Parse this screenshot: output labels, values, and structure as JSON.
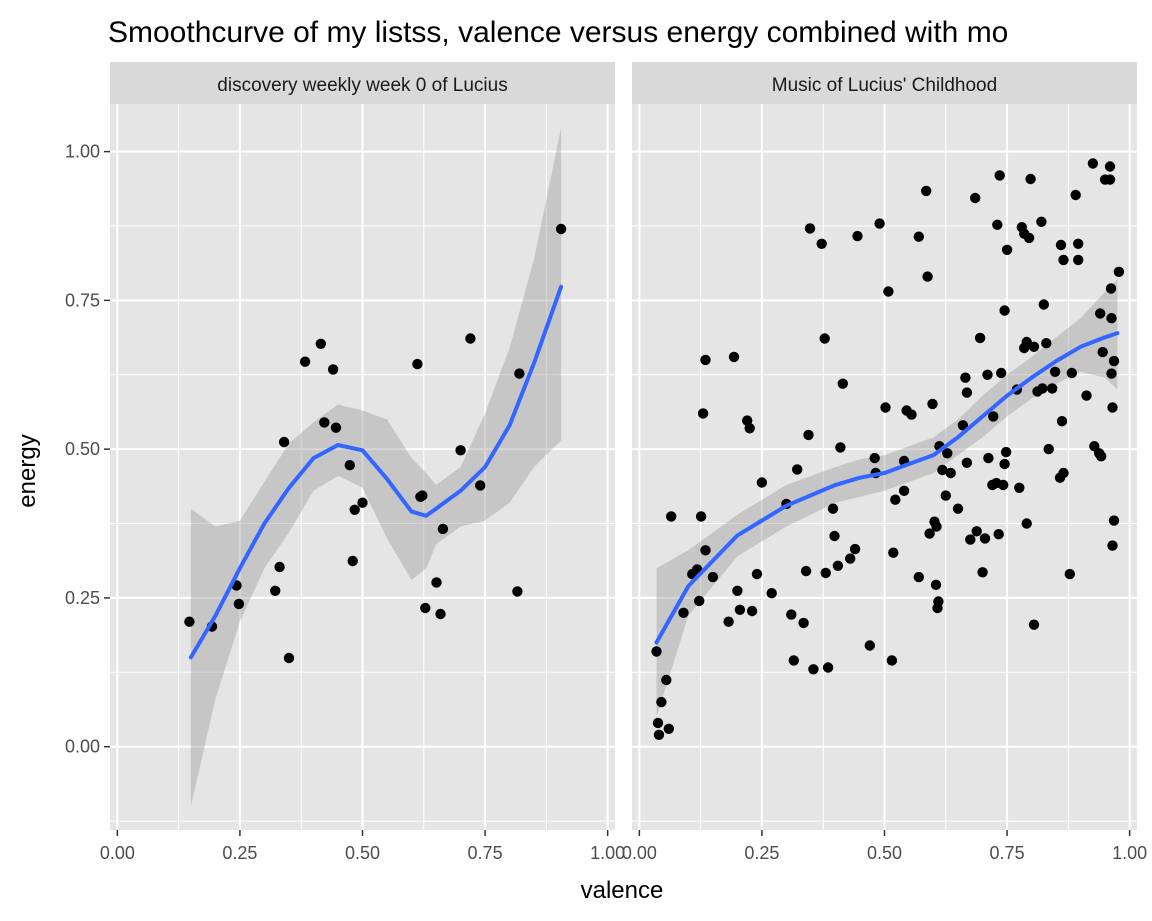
{
  "chart_data": {
    "type": "scatter",
    "title": "Smoothcurve of my listss, valence versus energy combined with mo",
    "xlabel": "valence",
    "ylabel": "energy",
    "xlim": [
      -0.015,
      1.015
    ],
    "ylim": [
      -0.14,
      1.08
    ],
    "x_ticks": [
      "0.00",
      "0.25",
      "0.50",
      "0.75",
      "1.00"
    ],
    "y_ticks": [
      "0.00",
      "0.25",
      "0.50",
      "0.75",
      "1.00"
    ],
    "grid": true,
    "legend": "none",
    "colors": {
      "panel_bg": "#e5e5e5",
      "strip_bg": "#d9d9d9",
      "grid": "#ffffff",
      "point": "#000000",
      "line": "#3366ff",
      "ribbon": "#999999"
    },
    "panels": [
      {
        "label": "discovery weekly week 0 of Lucius",
        "points": [
          [
            0.147,
            0.21
          ],
          [
            0.193,
            0.202
          ],
          [
            0.243,
            0.271
          ],
          [
            0.248,
            0.24
          ],
          [
            0.322,
            0.262
          ],
          [
            0.331,
            0.302
          ],
          [
            0.34,
            0.512
          ],
          [
            0.35,
            0.149
          ],
          [
            0.383,
            0.647
          ],
          [
            0.415,
            0.677
          ],
          [
            0.422,
            0.545
          ],
          [
            0.44,
            0.634
          ],
          [
            0.446,
            0.536
          ],
          [
            0.474,
            0.473
          ],
          [
            0.48,
            0.312
          ],
          [
            0.484,
            0.398
          ],
          [
            0.5,
            0.41
          ],
          [
            0.612,
            0.643
          ],
          [
            0.618,
            0.42
          ],
          [
            0.622,
            0.422
          ],
          [
            0.628,
            0.233
          ],
          [
            0.651,
            0.276
          ],
          [
            0.659,
            0.223
          ],
          [
            0.664,
            0.366
          ],
          [
            0.7,
            0.498
          ],
          [
            0.72,
            0.686
          ],
          [
            0.74,
            0.439
          ],
          [
            0.816,
            0.261
          ],
          [
            0.82,
            0.627
          ],
          [
            0.905,
            0.87
          ]
        ],
        "smooth": {
          "x": [
            0.15,
            0.2,
            0.25,
            0.3,
            0.35,
            0.4,
            0.45,
            0.5,
            0.55,
            0.6,
            0.63,
            0.65,
            0.7,
            0.75,
            0.8,
            0.85,
            0.905
          ],
          "y": [
            0.15,
            0.22,
            0.3,
            0.375,
            0.435,
            0.485,
            0.507,
            0.498,
            0.45,
            0.395,
            0.388,
            0.4,
            0.43,
            0.47,
            0.54,
            0.645,
            0.773
          ],
          "lower": [
            -0.1,
            0.08,
            0.21,
            0.3,
            0.36,
            0.43,
            0.455,
            0.435,
            0.35,
            0.28,
            0.3,
            0.34,
            0.37,
            0.38,
            0.41,
            0.47,
            0.515
          ],
          "upper": [
            0.4,
            0.37,
            0.38,
            0.445,
            0.51,
            0.545,
            0.575,
            0.565,
            0.55,
            0.485,
            0.46,
            0.44,
            0.47,
            0.56,
            0.67,
            0.82,
            1.04
          ]
        }
      },
      {
        "label": "Music of Lucius' Childhood",
        "points": [
          [
            0.035,
            0.16
          ],
          [
            0.038,
            0.04
          ],
          [
            0.04,
            0.02
          ],
          [
            0.045,
            0.075
          ],
          [
            0.055,
            0.112
          ],
          [
            0.06,
            0.03
          ],
          [
            0.065,
            0.387
          ],
          [
            0.09,
            0.225
          ],
          [
            0.108,
            0.29
          ],
          [
            0.118,
            0.298
          ],
          [
            0.122,
            0.245
          ],
          [
            0.126,
            0.387
          ],
          [
            0.13,
            0.56
          ],
          [
            0.135,
            0.65
          ],
          [
            0.15,
            0.285
          ],
          [
            0.135,
            0.33
          ],
          [
            0.182,
            0.21
          ],
          [
            0.193,
            0.655
          ],
          [
            0.2,
            0.262
          ],
          [
            0.205,
            0.23
          ],
          [
            0.22,
            0.548
          ],
          [
            0.225,
            0.535
          ],
          [
            0.23,
            0.228
          ],
          [
            0.24,
            0.29
          ],
          [
            0.25,
            0.444
          ],
          [
            0.27,
            0.258
          ],
          [
            0.3,
            0.408
          ],
          [
            0.31,
            0.222
          ],
          [
            0.315,
            0.145
          ],
          [
            0.322,
            0.466
          ],
          [
            0.335,
            0.208
          ],
          [
            0.34,
            0.295
          ],
          [
            0.345,
            0.524
          ],
          [
            0.355,
            0.13
          ],
          [
            0.348,
            0.871
          ],
          [
            0.372,
            0.845
          ],
          [
            0.378,
            0.686
          ],
          [
            0.38,
            0.292
          ],
          [
            0.385,
            0.133
          ],
          [
            0.395,
            0.4
          ],
          [
            0.398,
            0.354
          ],
          [
            0.405,
            0.304
          ],
          [
            0.41,
            0.503
          ],
          [
            0.415,
            0.61
          ],
          [
            0.43,
            0.316
          ],
          [
            0.44,
            0.332
          ],
          [
            0.445,
            0.858
          ],
          [
            0.47,
            0.17
          ],
          [
            0.48,
            0.485
          ],
          [
            0.482,
            0.46
          ],
          [
            0.49,
            0.879
          ],
          [
            0.502,
            0.57
          ],
          [
            0.508,
            0.765
          ],
          [
            0.515,
            0.145
          ],
          [
            0.518,
            0.326
          ],
          [
            0.522,
            0.415
          ],
          [
            0.54,
            0.43
          ],
          [
            0.54,
            0.48
          ],
          [
            0.545,
            0.565
          ],
          [
            0.555,
            0.558
          ],
          [
            0.57,
            0.285
          ],
          [
            0.57,
            0.857
          ],
          [
            0.585,
            0.934
          ],
          [
            0.588,
            0.79
          ],
          [
            0.592,
            0.358
          ],
          [
            0.598,
            0.576
          ],
          [
            0.602,
            0.378
          ],
          [
            0.605,
            0.272
          ],
          [
            0.606,
            0.37
          ],
          [
            0.608,
            0.233
          ],
          [
            0.61,
            0.244
          ],
          [
            0.612,
            0.505
          ],
          [
            0.618,
            0.465
          ],
          [
            0.625,
            0.422
          ],
          [
            0.628,
            0.493
          ],
          [
            0.635,
            0.46
          ],
          [
            0.65,
            0.4
          ],
          [
            0.66,
            0.54
          ],
          [
            0.665,
            0.62
          ],
          [
            0.668,
            0.595
          ],
          [
            0.668,
            0.477
          ],
          [
            0.675,
            0.348
          ],
          [
            0.685,
            0.922
          ],
          [
            0.688,
            0.362
          ],
          [
            0.695,
            0.687
          ],
          [
            0.7,
            0.293
          ],
          [
            0.705,
            0.35
          ],
          [
            0.71,
            0.625
          ],
          [
            0.712,
            0.485
          ],
          [
            0.72,
            0.44
          ],
          [
            0.722,
            0.555
          ],
          [
            0.728,
            0.443
          ],
          [
            0.73,
            0.877
          ],
          [
            0.733,
            0.357
          ],
          [
            0.735,
            0.96
          ],
          [
            0.738,
            0.628
          ],
          [
            0.742,
            0.44
          ],
          [
            0.745,
            0.475
          ],
          [
            0.748,
            0.495
          ],
          [
            0.75,
            0.835
          ],
          [
            0.745,
            0.733
          ],
          [
            0.77,
            0.6
          ],
          [
            0.775,
            0.435
          ],
          [
            0.78,
            0.873
          ],
          [
            0.785,
            0.862
          ],
          [
            0.785,
            0.67
          ],
          [
            0.79,
            0.68
          ],
          [
            0.79,
            0.375
          ],
          [
            0.795,
            0.855
          ],
          [
            0.798,
            0.954
          ],
          [
            0.805,
            0.672
          ],
          [
            0.805,
            0.205
          ],
          [
            0.812,
            0.597
          ],
          [
            0.82,
            0.882
          ],
          [
            0.822,
            0.602
          ],
          [
            0.825,
            0.743
          ],
          [
            0.83,
            0.678
          ],
          [
            0.835,
            0.5
          ],
          [
            0.842,
            0.602
          ],
          [
            0.848,
            0.63
          ],
          [
            0.858,
            0.452
          ],
          [
            0.86,
            0.843
          ],
          [
            0.862,
            0.547
          ],
          [
            0.865,
            0.46
          ],
          [
            0.865,
            0.818
          ],
          [
            0.878,
            0.29
          ],
          [
            0.882,
            0.628
          ],
          [
            0.89,
            0.927
          ],
          [
            0.895,
            0.845
          ],
          [
            0.895,
            0.818
          ],
          [
            0.912,
            0.59
          ],
          [
            0.925,
            0.98
          ],
          [
            0.928,
            0.505
          ],
          [
            0.938,
            0.493
          ],
          [
            0.94,
            0.728
          ],
          [
            0.942,
            0.488
          ],
          [
            0.945,
            0.663
          ],
          [
            0.95,
            0.953
          ],
          [
            0.96,
            0.975
          ],
          [
            0.96,
            0.953
          ],
          [
            0.962,
            0.77
          ],
          [
            0.963,
            0.72
          ],
          [
            0.963,
            0.627
          ],
          [
            0.965,
            0.57
          ],
          [
            0.965,
            0.338
          ],
          [
            0.968,
            0.38
          ],
          [
            0.968,
            0.648
          ],
          [
            0.978,
            0.798
          ]
        ],
        "smooth": {
          "x": [
            0.035,
            0.1,
            0.2,
            0.3,
            0.4,
            0.45,
            0.5,
            0.55,
            0.6,
            0.65,
            0.7,
            0.75,
            0.8,
            0.85,
            0.9,
            0.95,
            0.975
          ],
          "y": [
            0.175,
            0.27,
            0.355,
            0.405,
            0.44,
            0.452,
            0.46,
            0.475,
            0.49,
            0.52,
            0.555,
            0.59,
            0.62,
            0.648,
            0.672,
            0.688,
            0.695
          ],
          "lower": [
            0.05,
            0.22,
            0.32,
            0.37,
            0.41,
            0.42,
            0.43,
            0.445,
            0.46,
            0.49,
            0.52,
            0.555,
            0.585,
            0.61,
            0.63,
            0.62,
            0.6
          ],
          "upper": [
            0.3,
            0.33,
            0.39,
            0.44,
            0.47,
            0.483,
            0.49,
            0.505,
            0.52,
            0.55,
            0.59,
            0.625,
            0.655,
            0.688,
            0.72,
            0.765,
            0.785
          ]
        }
      }
    ]
  }
}
